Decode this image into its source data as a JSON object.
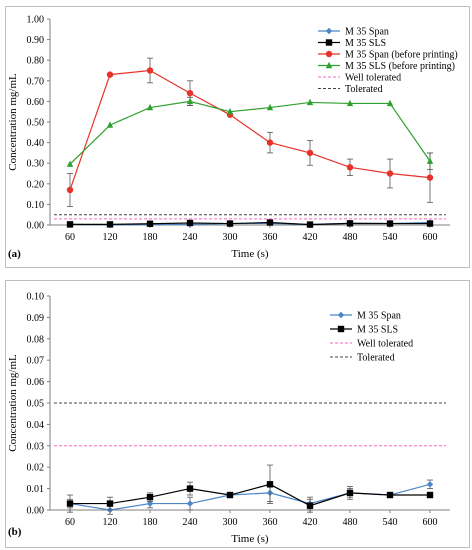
{
  "panels": [
    {
      "label": "(a)",
      "chart_data": {
        "type": "line",
        "xlabel": "Time (s)",
        "ylabel": "Concentration mg/mL",
        "x": [
          60,
          120,
          180,
          240,
          300,
          360,
          420,
          480,
          540,
          600
        ],
        "ylim": [
          0,
          1.0
        ],
        "yticks": [
          "0.00",
          "0.10",
          "0.20",
          "0.30",
          "0.40",
          "0.50",
          "0.60",
          "0.70",
          "0.80",
          "0.90",
          "1.00"
        ],
        "grid": false,
        "legend_position": "top-right",
        "series": [
          {
            "name": "M 35 Span",
            "color": "#4a86c8",
            "marker": "diamond",
            "values": [
              0.003,
              0.0,
              0.003,
              0.003,
              0.007,
              0.008,
              0.003,
              0.008,
              0.007,
              0.012
            ],
            "errors": [
              0.002,
              0.002,
              0.002,
              0.003,
              0.001,
              0.004,
              0.003,
              0.002,
              0.001,
              0.002
            ]
          },
          {
            "name": "M 35 SLS",
            "color": "#000000",
            "marker": "square",
            "values": [
              0.003,
              0.003,
              0.006,
              0.01,
              0.007,
              0.012,
              0.002,
              0.008,
              0.007,
              0.007
            ],
            "errors": [
              0.004,
              0.003,
              0.002,
              0.003,
              0.001,
              0.009,
              0.003,
              0.003,
              0.001,
              0.001
            ]
          },
          {
            "name": "M 35 Span (before printing)",
            "color": "#e8332a",
            "marker": "circle",
            "values": [
              0.17,
              0.73,
              0.75,
              0.64,
              0.535,
              0.4,
              0.35,
              0.28,
              0.25,
              0.23
            ],
            "errors": [
              0.08,
              0.0,
              0.06,
              0.06,
              0.0,
              0.05,
              0.06,
              0.04,
              0.07,
              0.12
            ]
          },
          {
            "name": "M 35 SLS  (before printing)",
            "color": "#2ea02e",
            "marker": "triangle",
            "values": [
              0.295,
              0.485,
              0.57,
              0.6,
              0.55,
              0.57,
              0.595,
              0.59,
              0.59,
              0.31
            ],
            "errors": [
              0.0,
              0.0,
              0.0,
              0.02,
              0.0,
              0.0,
              0.0,
              0.0,
              0.0,
              0.04
            ]
          }
        ],
        "reference_lines": [
          {
            "name": "Well tolerated",
            "value": 0.03,
            "color": "#ff66c4"
          },
          {
            "name": "Tolerated",
            "value": 0.05,
            "color": "#404040"
          }
        ]
      }
    },
    {
      "label": "(b)",
      "chart_data": {
        "type": "line",
        "xlabel": "Time (s)",
        "ylabel": "Concentration mg/mL",
        "x": [
          60,
          120,
          180,
          240,
          300,
          360,
          420,
          480,
          540,
          600
        ],
        "ylim": [
          0,
          0.1
        ],
        "yticks": [
          "0.00",
          "0.01",
          "0.02",
          "0.03",
          "0.04",
          "0.05",
          "0.06",
          "0.07",
          "0.08",
          "0.09",
          "0.10"
        ],
        "grid": false,
        "legend_position": "top-right",
        "series": [
          {
            "name": "M  35 Span",
            "color": "#4a86c8",
            "marker": "diamond",
            "values": [
              0.003,
              0.0,
              0.003,
              0.003,
              0.007,
              0.008,
              0.003,
              0.008,
              0.007,
              0.012
            ],
            "errors": [
              0.002,
              0.002,
              0.002,
              0.003,
              0.001,
              0.004,
              0.003,
              0.002,
              0.001,
              0.002
            ]
          },
          {
            "name": "M 35 SLS",
            "color": "#000000",
            "marker": "square",
            "values": [
              0.003,
              0.003,
              0.006,
              0.01,
              0.007,
              0.012,
              0.002,
              0.008,
              0.007,
              0.007
            ],
            "errors": [
              0.004,
              0.003,
              0.002,
              0.003,
              0.001,
              0.009,
              0.003,
              0.003,
              0.001,
              0.001
            ]
          }
        ],
        "reference_lines": [
          {
            "name": "Well tolerated",
            "value": 0.03,
            "color": "#ff66c4"
          },
          {
            "name": "Tolerated",
            "value": 0.05,
            "color": "#404040"
          }
        ]
      }
    }
  ]
}
